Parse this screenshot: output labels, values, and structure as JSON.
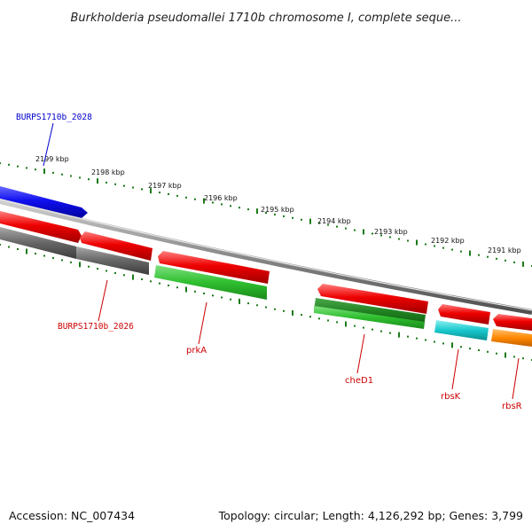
{
  "title": "Burkholderia pseudomallei 1710b chromosome I, complete seque...",
  "footer": {
    "accession": "Accession: NC_007434",
    "summary": "Topology: circular; Length: 4,126,292 bp; Genes: 3,799"
  },
  "scale_labels": [
    "2199 kbp",
    "2198 kbp",
    "2197 kbp",
    "2196 kbp",
    "2195 kbp",
    "2194 kbp",
    "2193 kbp",
    "2192 kbp",
    "2191 kbp"
  ],
  "gene_labels": [
    {
      "text": "BURPS1710b_2028",
      "color": "#0000cc"
    },
    {
      "text": "BURPS1710b_2026",
      "color": "#cc0000"
    },
    {
      "text": "prkA",
      "color": "#cc0000"
    },
    {
      "text": "cheD1",
      "color": "#cc0000"
    },
    {
      "text": "rbsK",
      "color": "#cc0000"
    },
    {
      "text": "rbsR",
      "color": "#cc0000"
    }
  ],
  "colors": {
    "forward_blue": "#1010ee",
    "forward_red": "#ee0000",
    "reverse_gray": "#666666",
    "reverse_green": "#2fbf2f",
    "reverse_dark_green": "#1f8f1f",
    "reverse_cyan": "#18c8cc",
    "reverse_orange": "#ff8800",
    "backbone": "#888888",
    "ticks": "#1a7a1a"
  }
}
